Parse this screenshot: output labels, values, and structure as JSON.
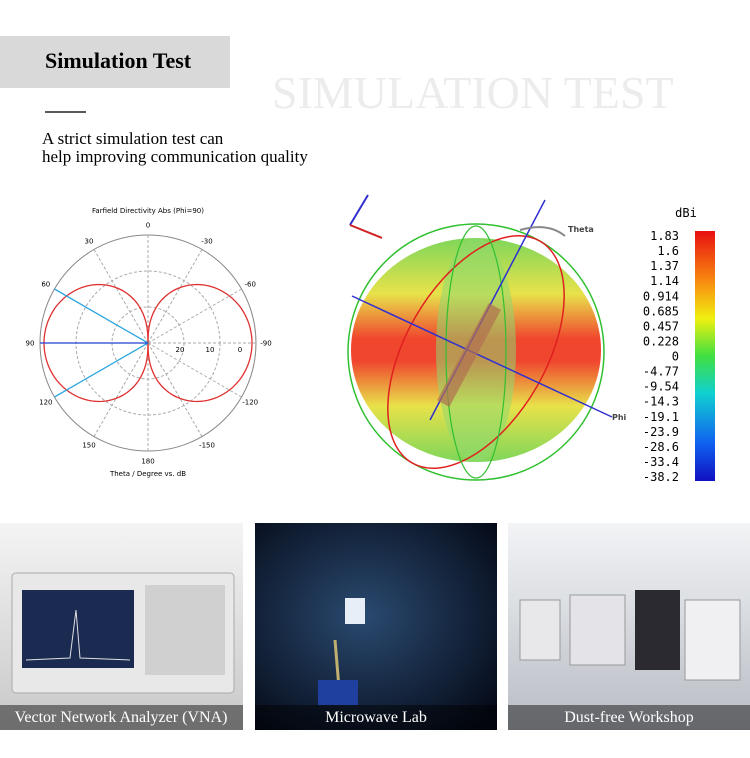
{
  "header": {
    "title": "Simulation Test",
    "watermark": "SIMULATION TEST",
    "description": [
      "A strict simulation test can",
      "help improving communication quality"
    ]
  },
  "polar_plot": {
    "title": "Farfield Directivity Abs (Phi=90)",
    "angle_labels": [
      0,
      30,
      60,
      90,
      120,
      150,
      180,
      -150,
      -120,
      -90,
      -60,
      -30
    ],
    "radial_labels": [
      20,
      10,
      0
    ],
    "axis_label": "Theta / Degree vs. dB"
  },
  "pattern_3d": {
    "axis_labels": [
      "Theta",
      "Phi"
    ],
    "unit": "dBi",
    "scale": [
      1.83,
      1.6,
      1.37,
      1.14,
      0.914,
      0.685,
      0.457,
      0.228,
      0,
      -4.77,
      -9.54,
      -14.3,
      -19.1,
      -23.9,
      -28.6,
      -33.4,
      -38.2
    ]
  },
  "photos": [
    {
      "caption": "Vector Network Analyzer (VNA)"
    },
    {
      "caption": "Microwave Lab"
    },
    {
      "caption": "Dust-free Workshop"
    }
  ]
}
